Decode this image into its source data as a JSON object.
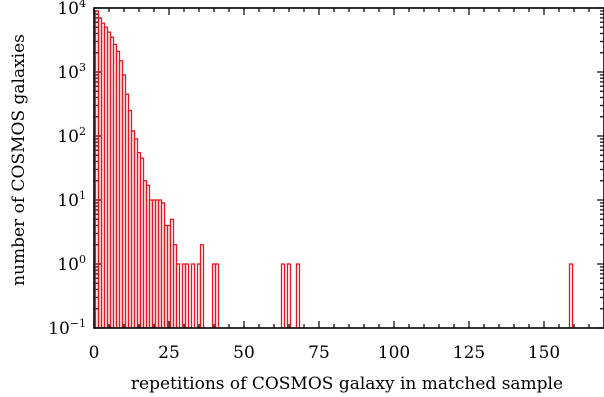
{
  "chart_data": {
    "type": "histogram",
    "title": "",
    "xlabel": "repetitions of COSMOS galaxy in matched sample",
    "ylabel": "number of COSMOS galaxies",
    "xlim": [
      0,
      170
    ],
    "ylim": [
      0.1,
      10000
    ],
    "yscale": "log",
    "grid": false,
    "line_color": "#e8141e",
    "x_ticks": [
      0,
      25,
      50,
      75,
      100,
      125,
      150
    ],
    "x_tick_labels": [
      "0",
      "25",
      "50",
      "75",
      "100",
      "125",
      "150"
    ],
    "y_ticks": [
      0.1,
      1,
      10,
      100,
      1000,
      10000
    ],
    "y_tick_labels": [
      {
        "base": "10",
        "exp": "−1"
      },
      {
        "base": "10",
        "exp": "0"
      },
      {
        "base": "10",
        "exp": "1"
      },
      {
        "base": "10",
        "exp": "2"
      },
      {
        "base": "10",
        "exp": "3"
      },
      {
        "base": "10",
        "exp": "4"
      }
    ],
    "bin_width": 1,
    "bins": [
      {
        "x": 1,
        "count": 9000
      },
      {
        "x": 2,
        "count": 7000
      },
      {
        "x": 3,
        "count": 5800
      },
      {
        "x": 4,
        "count": 5000
      },
      {
        "x": 5,
        "count": 4200
      },
      {
        "x": 6,
        "count": 3500
      },
      {
        "x": 7,
        "count": 2700
      },
      {
        "x": 8,
        "count": 2100
      },
      {
        "x": 9,
        "count": 1500
      },
      {
        "x": 10,
        "count": 900
      },
      {
        "x": 11,
        "count": 450
      },
      {
        "x": 12,
        "count": 250
      },
      {
        "x": 13,
        "count": 120
      },
      {
        "x": 14,
        "count": 90
      },
      {
        "x": 15,
        "count": 55
      },
      {
        "x": 16,
        "count": 45
      },
      {
        "x": 17,
        "count": 20
      },
      {
        "x": 18,
        "count": 17
      },
      {
        "x": 19,
        "count": 10
      },
      {
        "x": 20,
        "count": 10
      },
      {
        "x": 21,
        "count": 10
      },
      {
        "x": 22,
        "count": 10
      },
      {
        "x": 23,
        "count": 9
      },
      {
        "x": 24,
        "count": 4
      },
      {
        "x": 25,
        "count": 4
      },
      {
        "x": 26,
        "count": 5
      },
      {
        "x": 27,
        "count": 2
      },
      {
        "x": 28,
        "count": 1
      },
      {
        "x": 30,
        "count": 1
      },
      {
        "x": 31,
        "count": 1
      },
      {
        "x": 33,
        "count": 1
      },
      {
        "x": 35,
        "count": 1
      },
      {
        "x": 36,
        "count": 2
      },
      {
        "x": 40,
        "count": 1
      },
      {
        "x": 41,
        "count": 1
      },
      {
        "x": 63,
        "count": 1
      },
      {
        "x": 65,
        "count": 1
      },
      {
        "x": 68,
        "count": 1
      },
      {
        "x": 159,
        "count": 1
      }
    ]
  }
}
